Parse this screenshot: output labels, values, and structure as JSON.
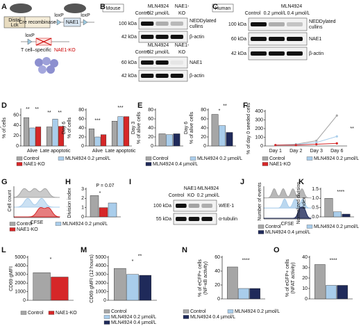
{
  "panel_letters": [
    "A",
    "B",
    "C",
    "D",
    "E",
    "F",
    "G",
    "H",
    "I",
    "J",
    "K",
    "L",
    "M",
    "N",
    "O"
  ],
  "diagram": {
    "promoter": [
      "Distal",
      "Lck"
    ],
    "cre": "Cre recombinase",
    "loxp": [
      "loxP",
      "loxP",
      "loxP"
    ],
    "gene": "NAE1",
    "cell_type": "T cell–specific",
    "knockout": "NAE1-KO"
  },
  "blots": [
    {
      "species": "Mouse",
      "headers": [
        "MLN4924",
        "NAE1-"
      ],
      "lanes": [
        "Control",
        "0.2 µmol/L",
        "KO"
      ],
      "rows": [
        {
          "kda": "100 kDa",
          "label": [
            "NEDDylated",
            "cullins"
          ]
        },
        {
          "kda": "42 kDa",
          "label": [
            "β-actin"
          ]
        }
      ],
      "lanes2": [
        "Control",
        "0.2 µmol/L",
        "KO"
      ],
      "headers2": [
        "MLN4924",
        "NAE1-"
      ],
      "rows2": [
        {
          "kda": "60 kDa",
          "label": [
            "NAE1"
          ]
        },
        {
          "kda": "42 kDa",
          "label": [
            "β-actin"
          ]
        }
      ]
    },
    {
      "species": "Human",
      "headers": [
        "MLN4924"
      ],
      "lanes": [
        "Control",
        "0.2 µmol/L",
        "0.4 µmol/L"
      ],
      "rows": [
        {
          "kda": "100 kDa",
          "label": [
            "NEDDylated",
            "cullins"
          ]
        },
        {
          "kda": "60 kDa",
          "label": [
            "NAE1"
          ]
        },
        {
          "kda": "42 kDa",
          "label": [
            "β-actin"
          ]
        }
      ]
    },
    {
      "headers": [
        "NAE1-",
        "MLN4924"
      ],
      "lanes": [
        "Control",
        "KO",
        "0.2 µmol/L"
      ],
      "rows": [
        {
          "kda": "100 kDa",
          "label": [
            "WEE-1"
          ]
        },
        {
          "kda": "55 kDa",
          "label": [
            "α-tubulin"
          ]
        }
      ]
    }
  ],
  "histograms": [
    {
      "ylabel": "Cell count",
      "xlabel": "CFSE",
      "legend": [
        {
          "name": "Control",
          "color": "#a6a6a6"
        },
        {
          "name": "MLN4924 0.2 µmol/L",
          "color": "#a9cdeb"
        },
        {
          "name": "NAE1-KO",
          "color": "#d62728"
        }
      ]
    },
    {
      "ylabel": "Number of events",
      "xlabel": "CFSE",
      "legend": [
        {
          "name": "Control",
          "color": "#a6a6a6"
        },
        {
          "name": "MLN4924 0.2 µmol/L",
          "color": "#a9cdeb"
        },
        {
          "name": "MLN4924 0.4 µmol/L",
          "color": "#1f2a5a"
        }
      ]
    }
  ],
  "chart_data": [
    {
      "type": "bar",
      "ylabel": [
        "Day 3",
        "% of cells"
      ],
      "categories": [
        "Alive",
        "Late apoptotic"
      ],
      "ylim": [
        0,
        70
      ],
      "yticks": [
        0,
        20,
        40,
        60
      ],
      "series": [
        {
          "name": "Control",
          "color": "#a6a6a6",
          "values": [
            55,
            37
          ]
        },
        {
          "name": "MLN4924 0.2 µmol/L",
          "color": "#a9cdeb",
          "values": [
            35,
            52
          ]
        },
        {
          "name": "NAE1-KO",
          "color": "#d62728",
          "values": [
            37,
            38
          ]
        }
      ],
      "annotations": [
        "**",
        "**",
        "**",
        "**"
      ],
      "legend": true
    },
    {
      "type": "bar",
      "ylabel": [
        "Day 6",
        "% of cells"
      ],
      "categories": [
        "Alive",
        "Late apoptotic"
      ],
      "ylim": [
        0,
        80
      ],
      "yticks": [
        0,
        20,
        40,
        60,
        80
      ],
      "series": [
        {
          "color": "#a6a6a6",
          "values": [
            38,
            55
          ]
        },
        {
          "color": "#a9cdeb",
          "values": [
            20,
            65
          ]
        },
        {
          "color": "#d62728",
          "values": [
            25,
            65
          ]
        }
      ],
      "annotations": [
        "***",
        "***"
      ]
    },
    {
      "type": "bar",
      "ylabel": [
        "Day 3",
        "% of alive cells"
      ],
      "ylim": [
        0,
        80
      ],
      "yticks": [
        0,
        20,
        40,
        60,
        80
      ],
      "series": [
        {
          "name": "Control",
          "color": "#a6a6a6",
          "values": [
            27
          ]
        },
        {
          "name": "MLN4924 0.2 µmol/L",
          "color": "#a9cdeb",
          "values": [
            25
          ]
        },
        {
          "name": "MLN4924 0.4 µmol/L",
          "color": "#1f2a5a",
          "values": [
            27
          ]
        }
      ],
      "legend": true
    },
    {
      "type": "bar",
      "ylabel": [
        "Day 6",
        "% of alive cells"
      ],
      "ylim": [
        0,
        80
      ],
      "yticks": [
        0,
        20,
        40,
        60,
        80
      ],
      "series": [
        {
          "color": "#a6a6a6",
          "values": [
            70
          ]
        },
        {
          "color": "#a9cdeb",
          "values": [
            45
          ]
        },
        {
          "color": "#1f2a5a",
          "values": [
            30
          ]
        }
      ],
      "annotations": [
        "*",
        "**"
      ]
    },
    {
      "type": "line",
      "ylabel": [
        "% of day 0 seeded cells"
      ],
      "categories": [
        "Day 1",
        "Day 2",
        "Day 3",
        "Day 6"
      ],
      "ylim": [
        0,
        400
      ],
      "yticks": [
        0,
        100,
        200,
        300,
        400
      ],
      "series": [
        {
          "name": "Control",
          "color": "#a6a6a6",
          "values": [
            10,
            20,
            60,
            350
          ]
        },
        {
          "name": "MLN4924 0.2 µmol/L",
          "color": "#a9cdeb",
          "values": [
            10,
            15,
            40,
            110
          ]
        },
        {
          "name": "NAE1-KO",
          "color": "#d62728",
          "values": [
            10,
            10,
            20,
            30
          ]
        }
      ],
      "annotations": [
        "**"
      ],
      "legend": true
    },
    {
      "type": "bar",
      "ylabel": [
        "Division index"
      ],
      "ylim": [
        0,
        3
      ],
      "yticks": [
        0,
        1,
        2,
        3
      ],
      "series": [
        {
          "color": "#a6a6a6",
          "values": [
            2.3
          ]
        },
        {
          "color": "#d62728",
          "values": [
            1.0
          ]
        },
        {
          "color": "#a9cdeb",
          "values": [
            1.5
          ]
        }
      ],
      "annotations": [
        "P = 0.07",
        "*"
      ]
    },
    {
      "type": "bar",
      "ylabel": [
        "Normalized division",
        "index"
      ],
      "ylim": [
        0,
        1.5
      ],
      "yticks": [
        {
          "value": 0,
          "label": "0.0"
        },
        0.5,
        {
          "value": 1,
          "label": "1.0"
        },
        1.5
      ],
      "series": [
        {
          "color": "#a6a6a6",
          "values": [
            1.0
          ]
        },
        {
          "color": "#a9cdeb",
          "values": [
            0.27
          ]
        },
        {
          "color": "#1f2a5a",
          "values": [
            0.15
          ]
        }
      ],
      "annotations": [
        "****"
      ]
    },
    {
      "type": "bar",
      "ylabel": [
        "CD69 gMFI"
      ],
      "ylim": [
        0,
        5000
      ],
      "yticks": [
        0,
        1000,
        2000,
        3000,
        4000,
        5000
      ],
      "series": [
        {
          "name": "Control",
          "color": "#a6a6a6",
          "values": [
            3200
          ]
        },
        {
          "name": "NAE1-KO",
          "color": "#d62728",
          "values": [
            2700
          ]
        }
      ],
      "annotations": [
        "*"
      ],
      "legend": true
    },
    {
      "type": "bar",
      "ylabel": [
        "CD69 gMFI (12 hours)"
      ],
      "ylim": [
        0,
        5000
      ],
      "yticks": [
        0,
        1000,
        2000,
        3000,
        4000,
        5000
      ],
      "series": [
        {
          "name": "Control",
          "color": "#a6a6a6",
          "values": [
            3700
          ]
        },
        {
          "name": "MLN4924 0.2 µmol/L",
          "color": "#a9cdeb",
          "values": [
            3000
          ]
        },
        {
          "name": "MLN4924 0.4 µmol/L",
          "color": "#1f2a5a",
          "values": [
            2900
          ]
        }
      ],
      "annotations": [
        "*",
        "**"
      ],
      "legend": true
    },
    {
      "type": "bar",
      "ylabel": [
        "% of eCFP+ cells",
        "(NF-κB activity)"
      ],
      "ylim": [
        0,
        60
      ],
      "yticks": [
        0,
        20,
        40,
        60
      ],
      "series": [
        {
          "name": "Control",
          "color": "#a6a6a6",
          "values": [
            46
          ]
        },
        {
          "name": "MLN4924 0.2 µmol/L",
          "color": "#a9cdeb",
          "values": [
            15
          ]
        },
        {
          "name": "MLN4924 0.4 µmol/L",
          "color": "#1f2a5a",
          "values": [
            15
          ]
        }
      ],
      "annotations": [
        "****"
      ],
      "legend": true
    },
    {
      "type": "bar",
      "ylabel": [
        "% of eGFP+ cells",
        "(NFAT activity)"
      ],
      "ylim": [
        0,
        40
      ],
      "yticks": [
        0,
        10,
        20,
        30,
        40
      ],
      "series": [
        {
          "color": "#a6a6a6",
          "values": [
            33
          ]
        },
        {
          "color": "#a9cdeb",
          "values": [
            13
          ]
        },
        {
          "color": "#1f2a5a",
          "values": [
            13
          ]
        }
      ],
      "annotations": [
        "****"
      ]
    }
  ]
}
